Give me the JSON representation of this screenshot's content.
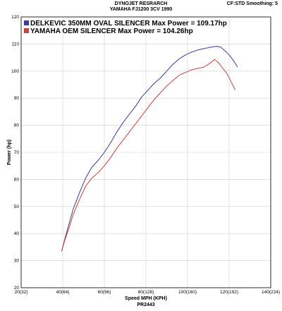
{
  "chart_data": {
    "type": "line",
    "title": "DYNOJET RESRARCH",
    "subtitle": "YAMAHA FJ1200 3CV 1990",
    "corner_label": "CF:STD Smoothing: 5",
    "xlabel": "Speed MPH (KPH)",
    "xlabel_sub": "PR2443",
    "ylabel": "Power (hp)",
    "xlim": [
      20,
      140
    ],
    "ylim": [
      20,
      120
    ],
    "x_ticks": [
      "20(32)",
      "40(64)",
      "60(96)",
      "80(128)",
      "100(160)",
      "120(192)",
      "140(224)"
    ],
    "x_tick_values": [
      20,
      40,
      60,
      80,
      100,
      120,
      140
    ],
    "y_ticks": [
      "20",
      "30",
      "40",
      "50",
      "60",
      "70",
      "80",
      "90",
      "100",
      "110",
      "120"
    ],
    "y_tick_values": [
      20,
      30,
      40,
      50,
      60,
      70,
      80,
      90,
      100,
      110,
      120
    ],
    "grid": true,
    "legend_position": "top-left",
    "series": [
      {
        "name": "DELKEVIC 350MM OVAL SILENCER  Max Power = 109.17hp",
        "color": "#3b3b9e",
        "x": [
          39.5,
          41,
          43,
          45,
          48,
          51,
          54,
          57,
          60,
          63,
          66,
          69,
          72,
          75,
          78,
          81,
          84,
          87,
          90,
          93,
          96,
          99,
          102,
          105,
          108,
          111,
          114,
          116,
          118,
          120,
          122,
          124
        ],
        "y": [
          33.5,
          38,
          43.5,
          49,
          55,
          60.5,
          64.5,
          67,
          70,
          73.5,
          77.5,
          81,
          84,
          87,
          90.5,
          93,
          95.5,
          97.5,
          100,
          102.5,
          104.5,
          106,
          107,
          107.8,
          108.3,
          108.8,
          109.17,
          108.8,
          107.5,
          106,
          104,
          101.5
        ]
      },
      {
        "name": "YAMAHA OEM SILENCER Max Power = 104.26hp",
        "color": "#c7423a",
        "x": [
          39.5,
          41,
          43,
          45,
          48,
          51,
          54,
          57,
          60,
          63,
          66,
          69,
          72,
          75,
          78,
          81,
          84,
          87,
          90,
          93,
          96,
          99,
          102,
          105,
          108,
          111,
          113,
          115,
          117,
          119,
          121,
          123
        ],
        "y": [
          33.5,
          37.5,
          42,
          47,
          52.5,
          57.5,
          60.5,
          62.5,
          65,
          68,
          71.5,
          74.5,
          77.5,
          80.5,
          83.5,
          86.5,
          89.5,
          92,
          94.5,
          96.5,
          98.5,
          99.5,
          100.5,
          101,
          101.5,
          103,
          104.26,
          103,
          101,
          99,
          96,
          93
        ]
      }
    ]
  }
}
